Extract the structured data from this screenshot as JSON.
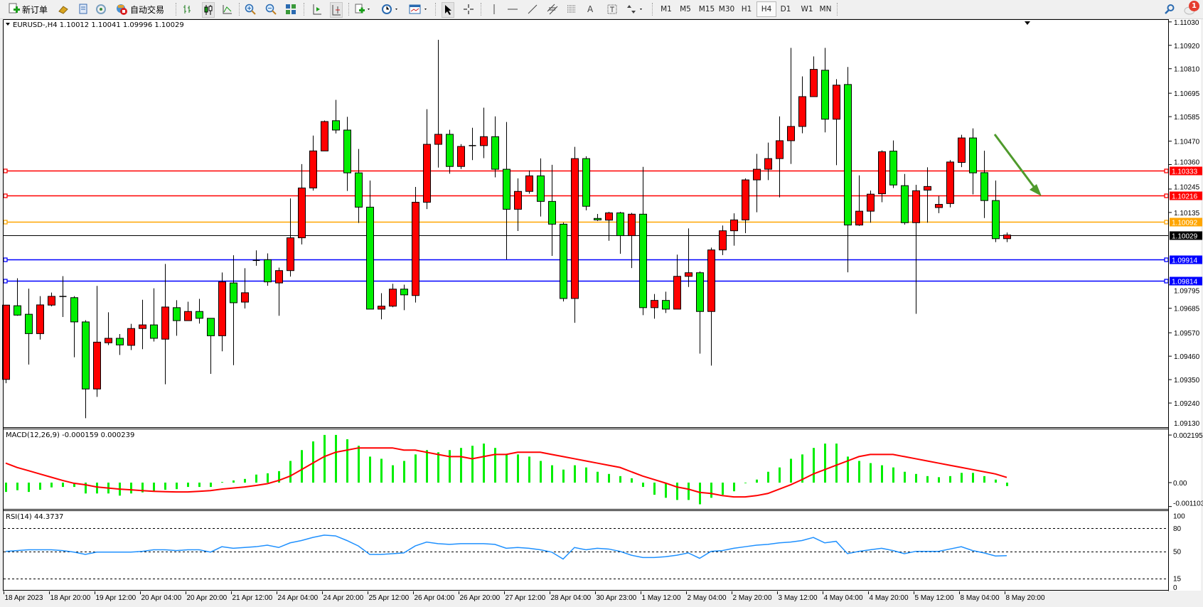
{
  "toolbar": {
    "new_order_label": "新订单",
    "auto_trade_label": "自动交易",
    "timeframes": [
      "M1",
      "M5",
      "M15",
      "M30",
      "H1",
      "H4",
      "D1",
      "W1",
      "MN"
    ],
    "selected_timeframe": "H4",
    "notification_count": "1"
  },
  "chart": {
    "title": "EURUSD-,H4  1.10012 1.10041 1.09996 1.10029",
    "symbol": "EURUSD-",
    "timeframe": "H4",
    "ohlc_readout": {
      "open": 1.10012,
      "high": 1.10041,
      "low": 1.09996,
      "close": 1.10029
    },
    "colors": {
      "bull": "#ff0000",
      "bear": "#00ee00",
      "wick": "#000000",
      "background": "#ffffff"
    },
    "price_ticks": [
      "1.11030",
      "1.10920",
      "1.10810",
      "1.10695",
      "1.10585",
      "1.10470",
      "1.10360",
      "1.10245",
      "1.10135",
      "1.09795",
      "1.09685",
      "1.09570",
      "1.09460",
      "1.09350",
      "1.09240"
    ],
    "price_bottom_label": "1.09130",
    "price_range": [
      1.0913,
      1.11036
    ],
    "current_price": {
      "value": "1.10029",
      "color": "#000000"
    },
    "levels": [
      {
        "value": "1.10333",
        "color": "#ff0000"
      },
      {
        "value": "1.10216",
        "color": "#ff0000"
      },
      {
        "value": "1.10092",
        "color": "#ffa500"
      },
      {
        "value": "1.09914",
        "color": "#0000ff"
      },
      {
        "value": "1.09814",
        "color": "#0000ff"
      }
    ],
    "arrow": {
      "color": "#4f9a2c",
      "direction": "down-right"
    },
    "time_labels": [
      "18 Apr 2023",
      "18 Apr 20:00",
      "19 Apr 12:00",
      "20 Apr 04:00",
      "20 Apr 20:00",
      "21 Apr 12:00",
      "24 Apr 04:00",
      "24 Apr 20:00",
      "25 Apr 12:00",
      "26 Apr 04:00",
      "26 Apr 20:00",
      "27 Apr 12:00",
      "28 Apr 04:00",
      "30 Apr 23:00",
      "1 May 12:00",
      "2 May 04:00",
      "2 May 20:00",
      "3 May 12:00",
      "4 May 04:00",
      "4 May 20:00",
      "5 May 12:00",
      "8 May 04:00",
      "8 May 20:00"
    ]
  },
  "chart_data": {
    "type": "candlestick",
    "candles_ohlc": [
      [
        1.09351,
        1.097,
        1.09333,
        1.097
      ],
      [
        1.09697,
        1.09826,
        1.0965,
        1.09653
      ],
      [
        1.09657,
        1.09777,
        1.09421,
        1.09566
      ],
      [
        1.09566,
        1.09742,
        1.09538,
        1.09701
      ],
      [
        1.097,
        1.09759,
        1.09694,
        1.09741
      ],
      [
        1.0974,
        1.09836,
        1.09644,
        1.09741
      ],
      [
        1.09735,
        1.09742,
        1.09455,
        1.09621
      ],
      [
        1.09621,
        1.09629,
        1.09169,
        1.09306
      ],
      [
        1.09306,
        1.0979,
        1.09269,
        1.09526
      ],
      [
        1.09523,
        1.09666,
        1.09512,
        1.09544
      ],
      [
        1.09544,
        1.09564,
        1.09466,
        1.09513
      ],
      [
        1.09511,
        1.09612,
        1.09489,
        1.0959
      ],
      [
        1.0959,
        1.09725,
        1.09493,
        1.09607
      ],
      [
        1.09607,
        1.09779,
        1.09529,
        1.09544
      ],
      [
        1.0954,
        1.09893,
        1.09328,
        1.09691
      ],
      [
        1.09688,
        1.09723,
        1.09556,
        1.09627
      ],
      [
        1.09627,
        1.09716,
        1.09627,
        1.0967
      ],
      [
        1.0967,
        1.09729,
        1.09613,
        1.09638
      ],
      [
        1.09638,
        1.09638,
        1.09377,
        1.09556
      ],
      [
        1.09556,
        1.09853,
        1.09483,
        1.09809
      ],
      [
        1.09804,
        1.09934,
        1.09418,
        1.09711
      ],
      [
        1.09714,
        1.09873,
        1.09684,
        1.09758
      ],
      [
        1.09909,
        1.09957,
        1.09885,
        1.09911
      ],
      [
        1.09913,
        1.09943,
        1.09791,
        1.09809
      ],
      [
        1.09804,
        1.09876,
        1.0965,
        1.09862
      ],
      [
        1.09862,
        1.10201,
        1.09834,
        1.10016
      ],
      [
        1.10016,
        1.10362,
        1.09985,
        1.1025
      ],
      [
        1.1025,
        1.10496,
        1.10238,
        1.10424
      ],
      [
        1.10424,
        1.10567,
        1.10424,
        1.10562
      ],
      [
        1.10566,
        1.10664,
        1.10506,
        1.10522
      ],
      [
        1.10522,
        1.10584,
        1.10236,
        1.10321
      ],
      [
        1.10321,
        1.10433,
        1.10086,
        1.1016
      ],
      [
        1.1016,
        1.10285,
        1.09681,
        1.09681
      ],
      [
        1.09681,
        1.09756,
        1.09633,
        1.09695
      ],
      [
        1.09695,
        1.098,
        1.0969,
        1.09775
      ],
      [
        1.09775,
        1.09796,
        1.09676,
        1.09748
      ],
      [
        1.09745,
        1.10255,
        1.09712,
        1.10183
      ],
      [
        1.10183,
        1.1062,
        1.10151,
        1.10455
      ],
      [
        1.10455,
        1.10946,
        1.10346,
        1.10502
      ],
      [
        1.10502,
        1.10523,
        1.10317,
        1.10351
      ],
      [
        1.10351,
        1.10456,
        1.10339,
        1.10445
      ],
      [
        1.10449,
        1.10533,
        1.10381,
        1.10449
      ],
      [
        1.10449,
        1.10627,
        1.1039,
        1.10491
      ],
      [
        1.10491,
        1.10586,
        1.103,
        1.10338
      ],
      [
        1.10338,
        1.1056,
        1.09915,
        1.1015
      ],
      [
        1.1015,
        1.10295,
        1.10048,
        1.10234
      ],
      [
        1.10234,
        1.10332,
        1.10223,
        1.10307
      ],
      [
        1.10307,
        1.10389,
        1.10116,
        1.10187
      ],
      [
        1.10187,
        1.10359,
        1.09931,
        1.1008
      ],
      [
        1.1008,
        1.10088,
        1.09717,
        1.09731
      ],
      [
        1.09731,
        1.10443,
        1.09617,
        1.10388
      ],
      [
        1.10388,
        1.10399,
        1.10145,
        1.10164
      ],
      [
        1.10107,
        1.10128,
        1.10095,
        1.101
      ],
      [
        1.10099,
        1.10138,
        1.10002,
        1.10133
      ],
      [
        1.10133,
        1.10138,
        1.09941,
        1.10026
      ],
      [
        1.10026,
        1.10133,
        1.09874,
        1.10127
      ],
      [
        1.10127,
        1.10349,
        1.09653,
        1.09688
      ],
      [
        1.09688,
        1.09752,
        1.09636,
        1.09722
      ],
      [
        1.09722,
        1.09763,
        1.09663,
        1.09681
      ],
      [
        1.09681,
        1.09937,
        1.09681,
        1.09835
      ],
      [
        1.09835,
        1.1006,
        1.09785,
        1.09852
      ],
      [
        1.09852,
        1.09858,
        1.09472,
        1.0967
      ],
      [
        1.0967,
        1.0997,
        1.09416,
        1.09959
      ],
      [
        1.09959,
        1.10074,
        1.09935,
        1.10049
      ],
      [
        1.10049,
        1.10131,
        1.09979,
        1.101
      ],
      [
        1.101,
        1.10295,
        1.10038,
        1.10288
      ],
      [
        1.10288,
        1.1041,
        1.10136,
        1.10338
      ],
      [
        1.10338,
        1.10463,
        1.10287,
        1.10388
      ],
      [
        1.10388,
        1.10586,
        1.10206,
        1.10472
      ],
      [
        1.10472,
        1.10908,
        1.10363,
        1.10539
      ],
      [
        1.10539,
        1.10774,
        1.10507,
        1.10679
      ],
      [
        1.10679,
        1.10868,
        1.10679,
        1.10807
      ],
      [
        1.10803,
        1.10908,
        1.10511,
        1.10573
      ],
      [
        1.10573,
        1.10761,
        1.10357,
        1.10733
      ],
      [
        1.10736,
        1.10818,
        1.09854,
        1.10076
      ],
      [
        1.10076,
        1.10309,
        1.10072,
        1.10141
      ],
      [
        1.10141,
        1.10238,
        1.10087,
        1.10221
      ],
      [
        1.10223,
        1.10427,
        1.10183,
        1.1042
      ],
      [
        1.10423,
        1.10473,
        1.1025,
        1.10264
      ],
      [
        1.10261,
        1.10316,
        1.10078,
        1.10087
      ],
      [
        1.10087,
        1.10265,
        1.09659,
        1.10237
      ],
      [
        1.1024,
        1.10347,
        1.10087,
        1.10257
      ],
      [
        1.10158,
        1.10212,
        1.10132,
        1.10173
      ],
      [
        1.10177,
        1.10381,
        1.10159,
        1.10372
      ],
      [
        1.1037,
        1.105,
        1.10348,
        1.10485
      ],
      [
        1.10485,
        1.1053,
        1.1022,
        1.10321
      ],
      [
        1.10322,
        1.10425,
        1.10109,
        1.10191
      ],
      [
        1.10191,
        1.10285,
        1.09996,
        1.10012
      ],
      [
        1.10012,
        1.10041,
        1.09996,
        1.10029
      ]
    ],
    "macd": {
      "label": "MACD(12,26,9) -0.000159 0.000239",
      "ticks": [
        "0.002195",
        "0.00",
        "-0.001103"
      ],
      "hist_color": "#00ee00",
      "signal_color": "#ff0000",
      "histogram": [
        -0.00043,
        -0.00035,
        -0.00043,
        -0.00033,
        -0.00022,
        -0.0002,
        -0.0002,
        -0.0005,
        -0.0005,
        -0.0005,
        -0.0006,
        -0.0005,
        -0.00045,
        -0.00042,
        -0.00033,
        -0.0003,
        -0.0002,
        -0.0002,
        -0.0002,
        3e-05,
        0.0001,
        0.00017,
        0.00037,
        0.00043,
        0.00053,
        0.001,
        0.0015,
        0.0019,
        0.0022,
        0.0022,
        0.002,
        0.0017,
        0.0012,
        0.0011,
        0.0008,
        0.001,
        0.0013,
        0.0015,
        0.0014,
        0.0015,
        0.0016,
        0.0017,
        0.0018,
        0.0016,
        0.0013,
        0.0013,
        0.0012,
        0.001,
        0.0008,
        0.0006,
        0.0008,
        0.0007,
        0.0005,
        0.0004,
        0.0003,
        0.0002,
        -0.0002,
        -0.00056,
        -0.0007,
        -0.0008,
        -0.0008,
        -0.001,
        -0.0007,
        -0.00056,
        -0.0004,
        0,
        0.00014,
        0.0005,
        0.0007,
        0.0011,
        0.0013,
        0.0016,
        0.0018,
        0.0018,
        0.0012,
        0.001,
        0.0009,
        0.0008,
        0.0007,
        0.0005,
        0.0004,
        0.0003,
        0.00025,
        0.0003,
        0.00045,
        0.00045,
        0.0003,
        0.00014,
        -0.000159
      ],
      "signal": [
        0.0009,
        0.0007,
        0.00055,
        0.0004,
        0.00025,
        0.0001,
        -3e-05,
        -0.0001,
        -0.0002,
        -0.00025,
        -0.0003,
        -0.00033,
        -0.00037,
        -0.0004,
        -0.00042,
        -0.00043,
        -0.00043,
        -0.0004,
        -0.00037,
        -0.0003,
        -0.00025,
        -0.0002,
        -0.00013,
        -5e-05,
        0.0001,
        0.0003,
        0.0006,
        0.0009,
        0.0012,
        0.0014,
        0.0015,
        0.0016,
        0.0016,
        0.0016,
        0.0016,
        0.0015,
        0.0015,
        0.0014,
        0.0013,
        0.0012,
        0.0012,
        0.0011,
        0.0012,
        0.0013,
        0.0013,
        0.0014,
        0.0014,
        0.0014,
        0.0013,
        0.0012,
        0.0011,
        0.001,
        0.0009,
        0.0008,
        0.0007,
        0.0005,
        0.0003,
        0.00014,
        -2e-05,
        -0.0002,
        -0.0003,
        -0.00045,
        -0.0005,
        -0.0006,
        -0.00066,
        -0.00066,
        -0.0006,
        -0.0005,
        -0.0003,
        -0.0001,
        0.00014,
        0.0004,
        0.0006,
        0.0008,
        0.001,
        0.0012,
        0.0013,
        0.0013,
        0.0013,
        0.0012,
        0.0011,
        0.001,
        0.0009,
        0.0008,
        0.0007,
        0.0006,
        0.0005,
        0.0004,
        0.000239
      ]
    },
    "rsi": {
      "label": "RSI(14) 44.3737",
      "ticks": [
        "100",
        "80",
        "50",
        "15",
        "0"
      ],
      "levels": [
        80,
        50,
        15
      ],
      "range": [
        0,
        100
      ],
      "color": "#1e90ff",
      "values": [
        50,
        51,
        52,
        52,
        52,
        51,
        49,
        46,
        49,
        49,
        49,
        49,
        50,
        52,
        52,
        51,
        52,
        52,
        49,
        56,
        54,
        55,
        56,
        58,
        55,
        61,
        64,
        68,
        71,
        70,
        64,
        57,
        46,
        46,
        47,
        48,
        57,
        62,
        60,
        59,
        60,
        60,
        60,
        59,
        54,
        55,
        54,
        52,
        49,
        40,
        55,
        52,
        54,
        53,
        50,
        45,
        42,
        42,
        43,
        45,
        48,
        41,
        50,
        51,
        54,
        56,
        58,
        59,
        61,
        62,
        64,
        68,
        61,
        63,
        47,
        50,
        52,
        54,
        51,
        47,
        50,
        50,
        50,
        53,
        56,
        51,
        48,
        44,
        44.3737
      ]
    }
  }
}
